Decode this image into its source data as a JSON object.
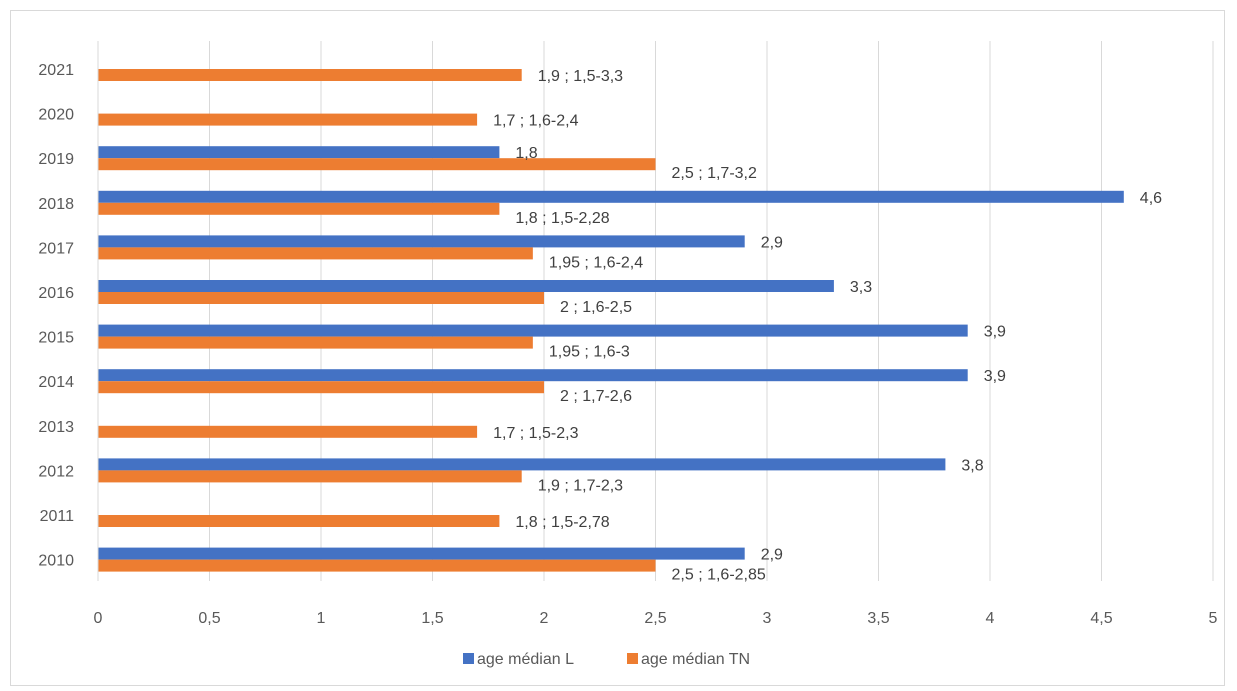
{
  "chart_data": {
    "type": "bar",
    "orientation": "horizontal",
    "categories": [
      "2010",
      "2011",
      "2012",
      "2013",
      "2014",
      "2015",
      "2016",
      "2017",
      "2018",
      "2019",
      "2020",
      "2021"
    ],
    "series": [
      {
        "name": "age médian L",
        "color": "#4472C4",
        "values": [
          2.9,
          null,
          3.8,
          null,
          3.9,
          3.9,
          3.3,
          2.9,
          4.6,
          1.8,
          null,
          null
        ],
        "labels": [
          "2,9",
          "",
          "3,8",
          "",
          "3,9",
          "3,9",
          "3,3",
          "2,9",
          "4,6",
          "1,8",
          "",
          ""
        ]
      },
      {
        "name": "age médian TN",
        "color": "#ED7D31",
        "values": [
          2.5,
          1.8,
          1.9,
          1.7,
          2.0,
          1.95,
          2.0,
          1.95,
          1.8,
          2.5,
          1.7,
          1.9
        ],
        "labels": [
          "2,5 ; 1,6-2,85",
          "1,8 ; 1,5-2,78",
          "1,9 ; 1,7-2,3",
          "1,7 ; 1,5-2,3",
          "2 ; 1,7-2,6",
          "1,95 ; 1,6-3",
          "2 ; 1,6-2,5",
          "1,95 ; 1,6-2,4",
          "1,8 ; 1,5-2,28",
          "2,5 ; 1,7-3,2",
          "1,7 ; 1,6-2,4",
          "1,9 ; 1,5-3,3"
        ]
      }
    ],
    "xlim": [
      0,
      5
    ],
    "xticks": [
      0,
      0.5,
      1,
      1.5,
      2,
      2.5,
      3,
      3.5,
      4,
      4.5,
      5
    ],
    "xtick_labels": [
      "0",
      "0,5",
      "1",
      "1,5",
      "2",
      "2,5",
      "3",
      "3,5",
      "4",
      "4,5",
      "5"
    ],
    "grid": "vertical",
    "legend": "bottom",
    "title": "",
    "xlabel": "",
    "ylabel": ""
  }
}
